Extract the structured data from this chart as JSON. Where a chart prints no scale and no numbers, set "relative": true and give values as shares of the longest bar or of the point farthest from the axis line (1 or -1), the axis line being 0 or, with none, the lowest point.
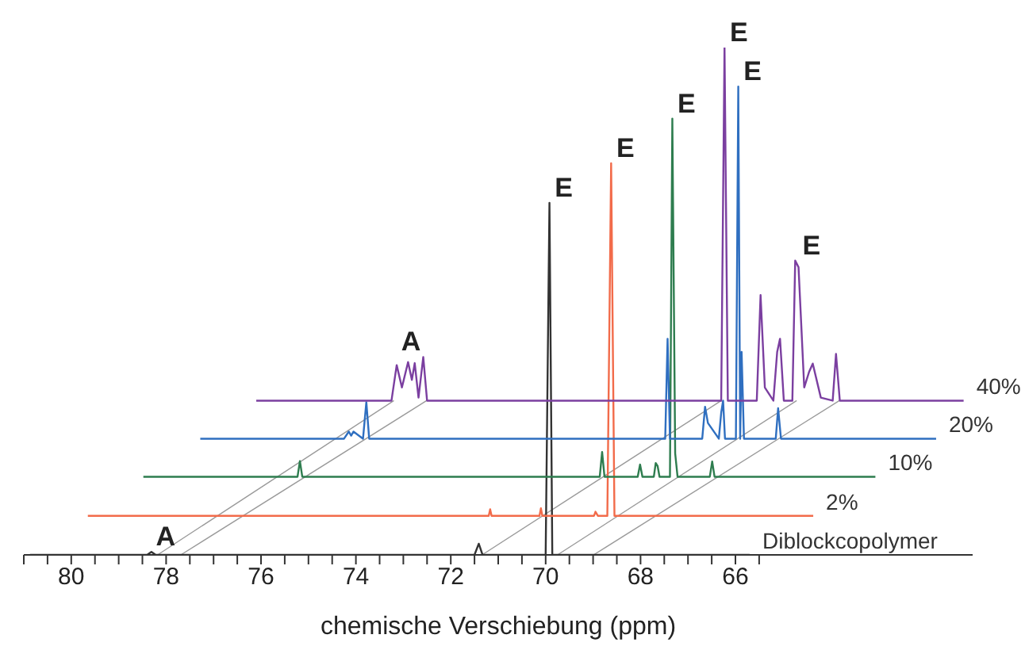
{
  "chart_data": {
    "type": "line",
    "relative": true,
    "xlabel": "chemische Verschiebung (ppm)",
    "xlim": [
      81,
      61
    ],
    "xticks": [
      {
        "value": 81,
        "label": null
      },
      {
        "value": 80.5,
        "label": null
      },
      80,
      {
        "value": 79.5,
        "label": null
      },
      78,
      {
        "value": 79,
        "label": null
      },
      {
        "value": 78.5,
        "label": null
      },
      {
        "value": 77.5,
        "label": null
      },
      76,
      {
        "value": 77,
        "label": null
      },
      {
        "value": 76.5,
        "label": null
      },
      {
        "value": 75.5,
        "label": null
      },
      74,
      {
        "value": 75,
        "label": null
      },
      {
        "value": 74.5,
        "label": null
      },
      {
        "value": 73.5,
        "label": null
      },
      72,
      {
        "value": 73,
        "label": null
      },
      {
        "value": 72.5,
        "label": null
      },
      {
        "value": 71.5,
        "label": null
      },
      70,
      {
        "value": 71,
        "label": null
      },
      {
        "value": 70.5,
        "label": null
      },
      {
        "value": 69.5,
        "label": null
      },
      68,
      {
        "value": 69,
        "label": null
      },
      {
        "value": 68.5,
        "label": null
      },
      {
        "value": 67.5,
        "label": null
      },
      66,
      {
        "value": 67,
        "label": null
      },
      {
        "value": 66.5,
        "label": null
      },
      {
        "value": 65.5,
        "label": null
      }
    ],
    "series": [
      {
        "name": "Diblockcopolymer",
        "color": "#333333",
        "x": [
          80.87,
          78.4,
          78.31,
          78.22,
          71.5,
          71.41,
          71.33,
          70.0,
          69.92,
          69.86,
          65.7
        ],
        "values": [
          0,
          0,
          0.006,
          0,
          0,
          0.022,
          0,
          0,
          0.694,
          0,
          0
        ]
      },
      {
        "name": "2%",
        "color": "#f26b4a",
        "x": [
          79.65,
          71.2,
          71.17,
          71.14,
          70.13,
          70.1,
          70.07,
          68.98,
          68.95,
          68.9,
          68.7,
          68.62,
          68.55,
          64.36
        ],
        "values": [
          0.077,
          0.077,
          0.09,
          0.077,
          0.077,
          0.092,
          0.077,
          0.077,
          0.085,
          0.077,
          0.077,
          0.772,
          0.077,
          0.077
        ]
      },
      {
        "name": "10%",
        "color": "#2e7d4f",
        "x": [
          78.48,
          75.23,
          75.18,
          75.13,
          68.86,
          68.81,
          68.76,
          68.06,
          68.01,
          67.96,
          67.72,
          67.68,
          67.64,
          67.6,
          67.38,
          67.33,
          67.27,
          67.22,
          66.54,
          66.49,
          66.44,
          63.05
        ],
        "values": [
          0.154,
          0.154,
          0.185,
          0.154,
          0.154,
          0.203,
          0.154,
          0.154,
          0.178,
          0.154,
          0.154,
          0.181,
          0.175,
          0.154,
          0.154,
          0.86,
          0.2,
          0.154,
          0.154,
          0.184,
          0.154,
          0.154
        ]
      },
      {
        "name": "20%",
        "color": "#2f6fc0",
        "x": [
          77.28,
          74.25,
          74.15,
          74.1,
          74.05,
          73.85,
          73.78,
          73.72,
          67.48,
          67.43,
          67.38,
          66.7,
          66.64,
          66.58,
          66.35,
          66.3,
          66.26,
          66.22,
          65.99,
          65.94,
          65.9,
          65.87,
          65.82,
          65.15,
          65.1,
          65.04,
          61.77
        ],
        "values": [
          0.229,
          0.229,
          0.243,
          0.235,
          0.243,
          0.229,
          0.301,
          0.229,
          0.229,
          0.426,
          0.229,
          0.229,
          0.292,
          0.26,
          0.229,
          0.28,
          0.304,
          0.229,
          0.229,
          0.923,
          0.229,
          0.4,
          0.229,
          0.229,
          0.289,
          0.229,
          0.229
        ]
      },
      {
        "name": "40%",
        "color": "#7b3fa0",
        "x": [
          76.1,
          73.25,
          73.14,
          73.03,
          72.9,
          72.82,
          72.76,
          72.68,
          72.58,
          72.5,
          66.3,
          66.23,
          66.16,
          65.55,
          65.47,
          65.38,
          65.2,
          65.12,
          65.06,
          64.98,
          64.8,
          64.74,
          64.67,
          64.55,
          64.45,
          64.37,
          64.2,
          63.95,
          63.88,
          63.8,
          61.19
        ],
        "values": [
          0.304,
          0.304,
          0.374,
          0.33,
          0.38,
          0.345,
          0.378,
          0.31,
          0.39,
          0.304,
          0.304,
          1,
          0.304,
          0.304,
          0.512,
          0.33,
          0.304,
          0.4,
          0.426,
          0.304,
          0.304,
          0.58,
          0.567,
          0.33,
          0.36,
          0.377,
          0.31,
          0.304,
          0.396,
          0.304,
          0.304
        ]
      }
    ],
    "annotations": [
      {
        "text": "A",
        "x": 78.31,
        "y": 0.006
      },
      {
        "text": "A",
        "x": 73.14,
        "y": 0.39
      },
      {
        "text": "E",
        "x": 69.92,
        "y": 0.694
      },
      {
        "text": "E",
        "x": 68.62,
        "y": 0.772
      },
      {
        "text": "E",
        "x": 67.33,
        "y": 0.86
      },
      {
        "text": "E",
        "x": 65.94,
        "y": 0.923
      },
      {
        "text": "E",
        "x": 66.23,
        "y": 1
      },
      {
        "text": "E",
        "x": 64.7,
        "y": 0.58
      }
    ]
  }
}
